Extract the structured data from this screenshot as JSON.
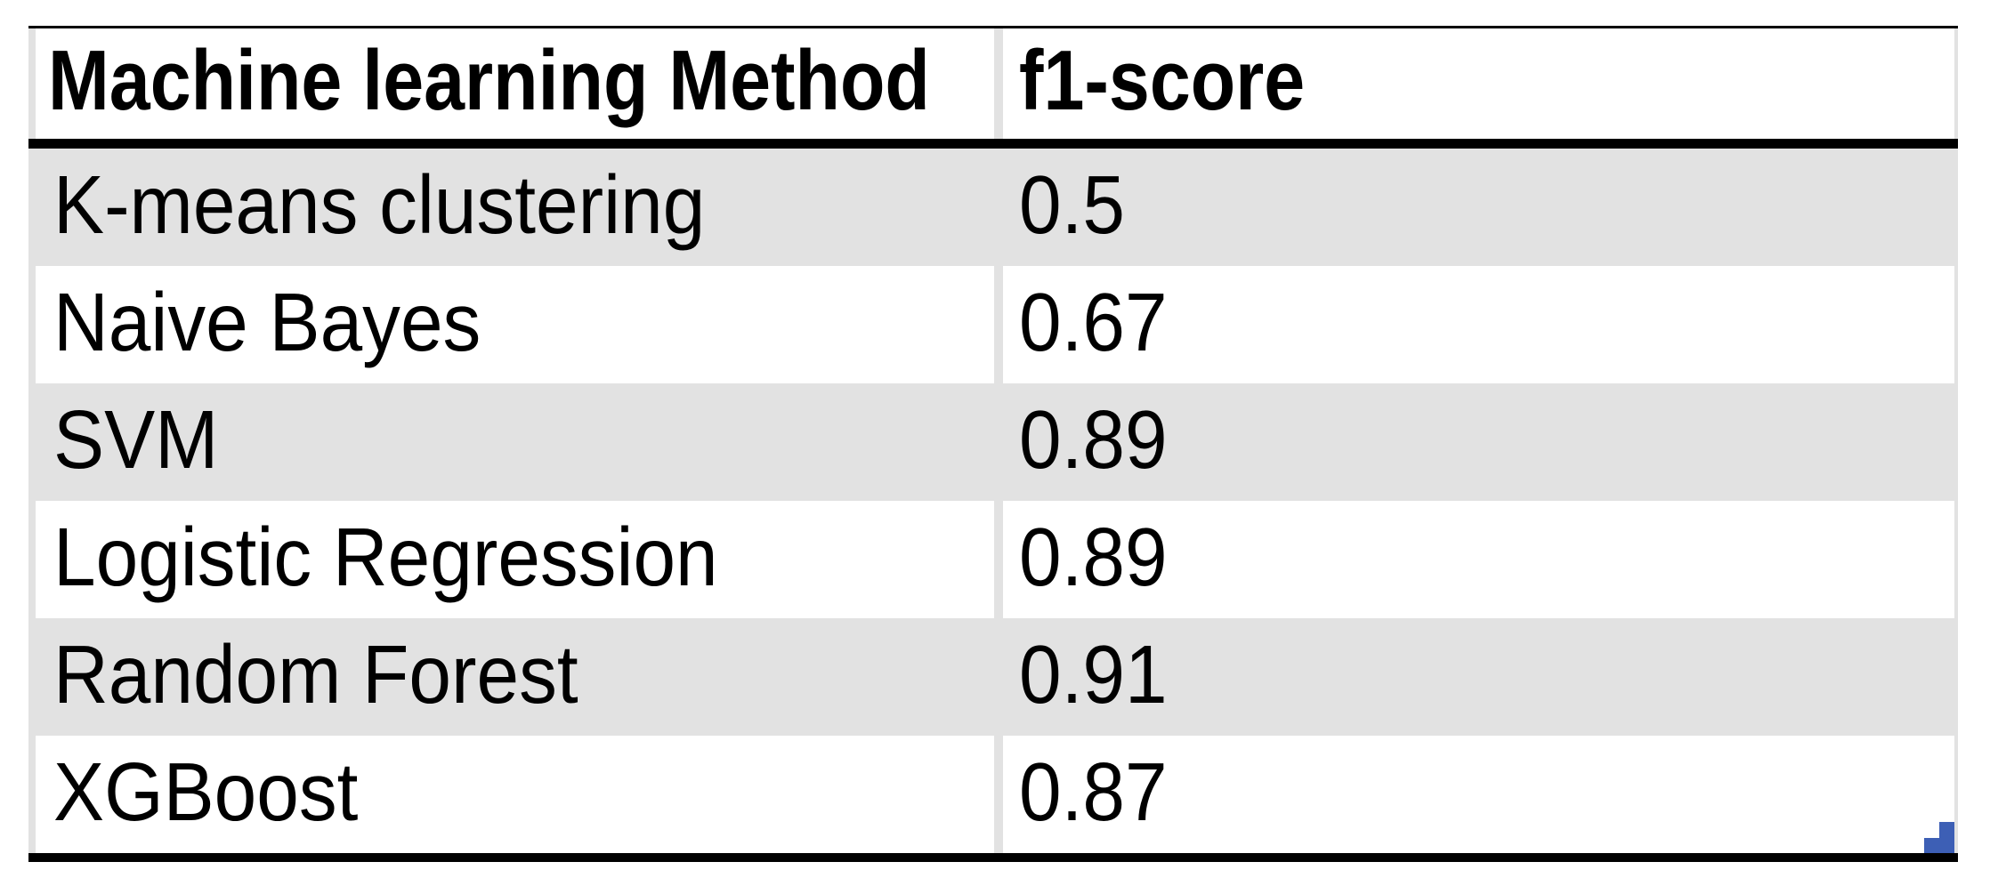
{
  "table": {
    "columns": [
      "Machine learning Method",
      "f1-score"
    ],
    "rows": [
      {
        "method": "K-means clustering",
        "f1": "0.5"
      },
      {
        "method": "Naive Bayes",
        "f1": "0.67"
      },
      {
        "method": "SVM",
        "f1": "0.89"
      },
      {
        "method": "Logistic Regression",
        "f1": "0.89"
      },
      {
        "method": "Random Forest",
        "f1": "0.91"
      },
      {
        "method": "XGBoost",
        "f1": "0.87"
      }
    ]
  },
  "colors": {
    "row_shading": "#e2e2e2",
    "border": "#000000",
    "selection_handle": "#3d5fb5",
    "text": "#000000",
    "background": "#ffffff"
  },
  "chart_data": {
    "type": "table",
    "columns": [
      "Machine learning Method",
      "f1-score"
    ],
    "rows": [
      [
        "K-means clustering",
        0.5
      ],
      [
        "Naive Bayes",
        0.67
      ],
      [
        "SVM",
        0.89
      ],
      [
        "Logistic Regression",
        0.89
      ],
      [
        "Random Forest",
        0.91
      ],
      [
        "XGBoost",
        0.87
      ]
    ],
    "layout_hints": {
      "header_bold": true,
      "alternating_row_shading": true,
      "thick_rule_under_header": true,
      "thick_rule_at_bottom": true,
      "selection_handle_bottom_right": true
    }
  }
}
